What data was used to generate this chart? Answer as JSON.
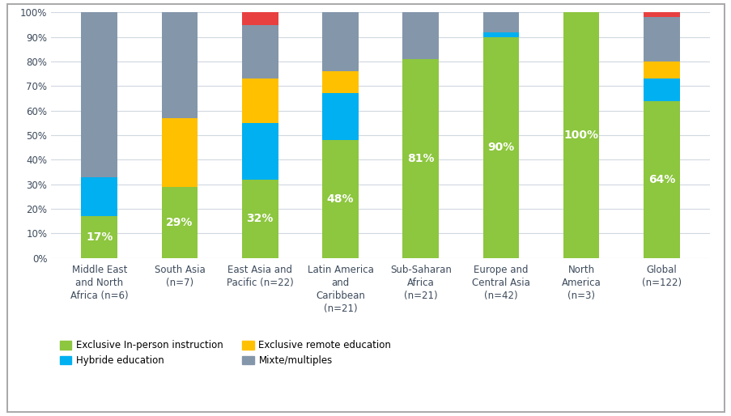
{
  "categories": [
    "Middle East\nand North\nAfrica (n=6)",
    "South Asia\n(n=7)",
    "East Asia and\nPacific (n=22)",
    "Latin America\nand\nCaribbean\n(n=21)",
    "Sub-Saharan\nAfrica\n(n=21)",
    "Europe and\nCentral Asia\n(n=42)",
    "North\nAmerica\n(n=3)",
    "Global\n(n=122)"
  ],
  "green_values": [
    17,
    29,
    32,
    48,
    81,
    90,
    100,
    64
  ],
  "blue_values": [
    16,
    0,
    23,
    19,
    0,
    2,
    0,
    9
  ],
  "yellow_values": [
    0,
    28,
    18,
    9,
    0,
    0,
    0,
    7
  ],
  "gray_values": [
    67,
    43,
    22,
    24,
    19,
    8,
    0,
    18
  ],
  "red_values": [
    0,
    0,
    5,
    0,
    0,
    0,
    0,
    2
  ],
  "green_labels": [
    "17%",
    "29%",
    "32%",
    "48%",
    "81%",
    "90%",
    "100%",
    "64%"
  ],
  "green_color": "#8dc63f",
  "blue_color": "#00b0f0",
  "yellow_color": "#ffc000",
  "gray_color": "#8496aa",
  "red_color": "#e84040",
  "legend_labels": [
    "Exclusive In-person instruction",
    "Hybride education",
    "Exclusive remote education",
    "Mixte/multiples"
  ],
  "background_color": "#ffffff",
  "grid_color": "#d0d8e0",
  "bar_width": 0.45,
  "label_fontsize": 10,
  "tick_fontsize": 8.5,
  "legend_fontsize": 8.5
}
